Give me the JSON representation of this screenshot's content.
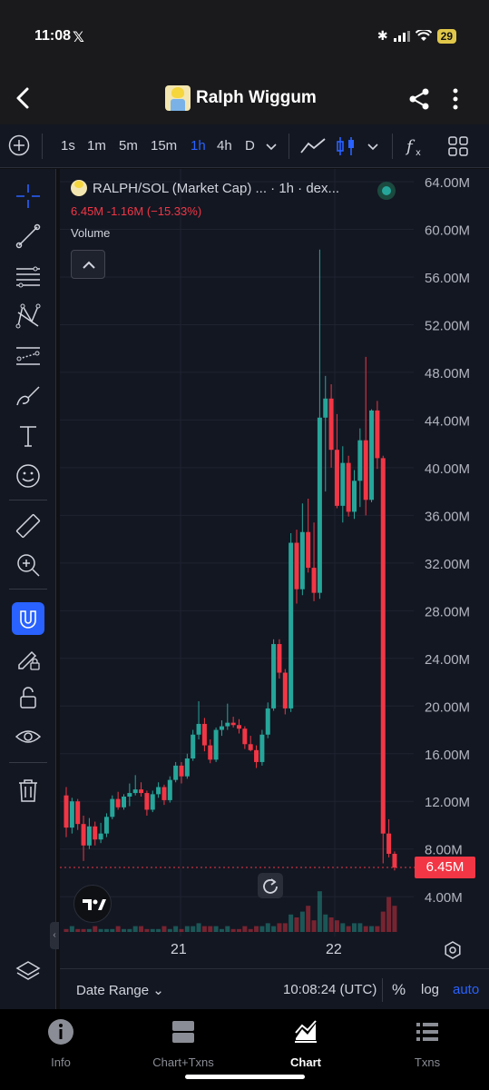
{
  "status_bar": {
    "time": "11:08",
    "social_icon": "x-icon",
    "battery": "29"
  },
  "header": {
    "title": "Ralph Wiggum"
  },
  "toolbar": {
    "intervals": [
      "1s",
      "1m",
      "5m",
      "15m",
      "1h",
      "4h",
      "D"
    ],
    "active_interval": "1h"
  },
  "legend": {
    "symbol": "RALPH/SOL (Market Cap) ... · 1h · dex...",
    "values": "6.45M  -1.16M (−15.33%)",
    "volume_label": "Volume"
  },
  "price_tag": "6.45M",
  "date_range": {
    "label": "Date Range",
    "time": "10:08:24 (UTC)",
    "percent": "%",
    "log": "log",
    "auto": "auto"
  },
  "nav": [
    {
      "label": "Info",
      "icon": "info-icon"
    },
    {
      "label": "Chart+Txns",
      "icon": "chart-txns-icon"
    },
    {
      "label": "Chart",
      "icon": "chart-icon",
      "active": true
    },
    {
      "label": "Txns",
      "icon": "list-icon"
    }
  ],
  "colors": {
    "up": "#26a69a",
    "down": "#f23645",
    "accent": "#2962ff",
    "background": "#131722"
  },
  "chart_data": {
    "type": "candlestick",
    "title": "RALPH/SOL (Market Cap) · 1h",
    "x_ticks": [
      "21",
      "22"
    ],
    "y_ticks": [
      "4.00M",
      "8.00M",
      "12.00M",
      "16.00M",
      "20.00M",
      "24.00M",
      "28.00M",
      "32.00M",
      "36.00M",
      "40.00M",
      "44.00M",
      "48.00M",
      "52.00M",
      "56.00M",
      "60.00M",
      "64.00M"
    ],
    "ylim": [
      0,
      64
    ],
    "unit": "M",
    "last_value": 6.45,
    "candles": [
      {
        "o": 12.5,
        "h": 13.2,
        "l": 9.0,
        "c": 9.8
      },
      {
        "o": 9.8,
        "h": 12.3,
        "l": 9.3,
        "c": 12.0
      },
      {
        "o": 12.0,
        "h": 12.2,
        "l": 9.6,
        "c": 10.1
      },
      {
        "o": 10.1,
        "h": 10.8,
        "l": 7.0,
        "c": 8.3
      },
      {
        "o": 8.3,
        "h": 10.6,
        "l": 8.0,
        "c": 9.9
      },
      {
        "o": 9.9,
        "h": 10.3,
        "l": 8.3,
        "c": 8.8
      },
      {
        "o": 8.8,
        "h": 10.2,
        "l": 8.5,
        "c": 9.3
      },
      {
        "o": 9.3,
        "h": 11.0,
        "l": 9.0,
        "c": 10.7
      },
      {
        "o": 10.7,
        "h": 12.5,
        "l": 10.5,
        "c": 12.2
      },
      {
        "o": 12.2,
        "h": 12.8,
        "l": 11.3,
        "c": 11.5
      },
      {
        "o": 11.5,
        "h": 12.6,
        "l": 11.3,
        "c": 12.4
      },
      {
        "o": 12.4,
        "h": 13.5,
        "l": 11.6,
        "c": 12.7
      },
      {
        "o": 12.7,
        "h": 14.2,
        "l": 12.5,
        "c": 13.0
      },
      {
        "o": 13.0,
        "h": 13.6,
        "l": 12.4,
        "c": 12.7
      },
      {
        "o": 12.7,
        "h": 12.9,
        "l": 10.8,
        "c": 11.3
      },
      {
        "o": 11.3,
        "h": 12.9,
        "l": 11.1,
        "c": 12.6
      },
      {
        "o": 12.6,
        "h": 13.6,
        "l": 12.3,
        "c": 13.2
      },
      {
        "o": 13.2,
        "h": 13.4,
        "l": 11.7,
        "c": 12.1
      },
      {
        "o": 12.1,
        "h": 14.1,
        "l": 11.9,
        "c": 13.8
      },
      {
        "o": 13.8,
        "h": 15.3,
        "l": 13.6,
        "c": 15.0
      },
      {
        "o": 15.0,
        "h": 15.3,
        "l": 13.5,
        "c": 14.1
      },
      {
        "o": 14.1,
        "h": 16.0,
        "l": 13.9,
        "c": 15.6
      },
      {
        "o": 15.6,
        "h": 18.0,
        "l": 15.4,
        "c": 17.6
      },
      {
        "o": 17.6,
        "h": 20.4,
        "l": 17.2,
        "c": 18.5
      },
      {
        "o": 18.5,
        "h": 19.0,
        "l": 16.2,
        "c": 16.7
      },
      {
        "o": 16.7,
        "h": 17.2,
        "l": 15.2,
        "c": 15.5
      },
      {
        "o": 15.5,
        "h": 18.2,
        "l": 15.3,
        "c": 18.0
      },
      {
        "o": 18.0,
        "h": 18.8,
        "l": 17.5,
        "c": 18.3
      },
      {
        "o": 18.3,
        "h": 20.2,
        "l": 18.0,
        "c": 18.6
      },
      {
        "o": 18.6,
        "h": 19.1,
        "l": 18.2,
        "c": 18.4
      },
      {
        "o": 18.4,
        "h": 18.9,
        "l": 17.7,
        "c": 18.1
      },
      {
        "o": 18.1,
        "h": 18.3,
        "l": 16.4,
        "c": 16.8
      },
      {
        "o": 16.8,
        "h": 17.5,
        "l": 16.2,
        "c": 16.3
      },
      {
        "o": 16.3,
        "h": 16.7,
        "l": 14.8,
        "c": 15.3
      },
      {
        "o": 15.3,
        "h": 18.0,
        "l": 15.0,
        "c": 17.6
      },
      {
        "o": 17.6,
        "h": 20.3,
        "l": 17.3,
        "c": 19.8
      },
      {
        "o": 19.8,
        "h": 25.6,
        "l": 19.6,
        "c": 25.2
      },
      {
        "o": 25.2,
        "h": 25.6,
        "l": 22.3,
        "c": 22.8
      },
      {
        "o": 22.8,
        "h": 23.1,
        "l": 19.3,
        "c": 19.8
      },
      {
        "o": 19.8,
        "h": 34.5,
        "l": 19.5,
        "c": 33.7
      },
      {
        "o": 33.7,
        "h": 34.8,
        "l": 28.6,
        "c": 29.8
      },
      {
        "o": 29.8,
        "h": 37.0,
        "l": 29.3,
        "c": 34.6
      },
      {
        "o": 34.6,
        "h": 37.4,
        "l": 31.2,
        "c": 31.6
      },
      {
        "o": 31.6,
        "h": 35.4,
        "l": 28.8,
        "c": 29.5
      },
      {
        "o": 29.5,
        "h": 58.3,
        "l": 29.0,
        "c": 44.2
      },
      {
        "o": 44.2,
        "h": 47.7,
        "l": 38.0,
        "c": 45.8
      },
      {
        "o": 45.8,
        "h": 47.0,
        "l": 40.0,
        "c": 41.5
      },
      {
        "o": 41.5,
        "h": 44.5,
        "l": 36.6,
        "c": 36.8
      },
      {
        "o": 36.8,
        "h": 41.8,
        "l": 35.4,
        "c": 40.4
      },
      {
        "o": 40.4,
        "h": 41.0,
        "l": 35.9,
        "c": 36.3
      },
      {
        "o": 36.3,
        "h": 39.8,
        "l": 35.7,
        "c": 38.9
      },
      {
        "o": 38.9,
        "h": 43.3,
        "l": 36.7,
        "c": 42.3
      },
      {
        "o": 42.3,
        "h": 49.3,
        "l": 36.0,
        "c": 37.3
      },
      {
        "o": 37.3,
        "h": 44.9,
        "l": 37.1,
        "c": 44.8
      },
      {
        "o": 44.8,
        "h": 45.6,
        "l": 39.9,
        "c": 40.8
      },
      {
        "o": 40.8,
        "h": 41.0,
        "l": 6.8,
        "c": 9.3
      },
      {
        "o": 9.3,
        "h": 10.5,
        "l": 7.3,
        "c": 7.6
      },
      {
        "o": 7.6,
        "h": 7.8,
        "l": 6.2,
        "c": 6.45
      }
    ],
    "volume": [
      1,
      2,
      1,
      1,
      1,
      2,
      1,
      1,
      1,
      2,
      1,
      1,
      2,
      2,
      1,
      1,
      1,
      2,
      1,
      2,
      1,
      2,
      2,
      3,
      2,
      2,
      2,
      1,
      2,
      1,
      1,
      2,
      1,
      2,
      2,
      3,
      2,
      3,
      3,
      6,
      5,
      7,
      9,
      4,
      14,
      6,
      5,
      4,
      3,
      2,
      3,
      3,
      2,
      2,
      2,
      7,
      12,
      9
    ]
  }
}
